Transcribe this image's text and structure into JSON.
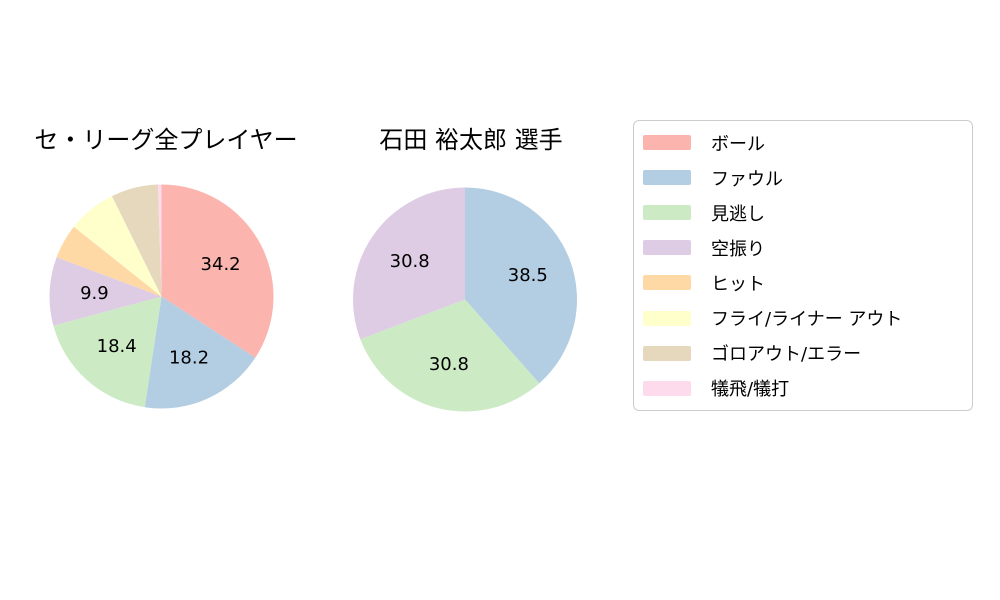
{
  "figure": {
    "background": "#ffffff",
    "text_color": "#000000"
  },
  "chart_data": [
    {
      "type": "pie",
      "title": "セ・リーグ全プレイヤー",
      "value_unit": "percent",
      "start_angle": "top",
      "direction": "clockwise",
      "label_position": "inside",
      "slices": [
        {
          "name": "ボール",
          "value": 34.2,
          "label": "34.2",
          "color": "#FBB4AE"
        },
        {
          "name": "ファウル",
          "value": 18.2,
          "label": "18.2",
          "color": "#B3CDE3"
        },
        {
          "name": "見逃し",
          "value": 18.4,
          "label": "18.4",
          "color": "#CCEBC5"
        },
        {
          "name": "空振り",
          "value": 9.9,
          "label": "9.9",
          "color": "#DECBE4"
        },
        {
          "name": "ヒット",
          "value": 5.0,
          "label": null,
          "color": "#FED9A6"
        },
        {
          "name": "フライ/ライナー アウト",
          "value": 7.0,
          "label": null,
          "color": "#FFFFCC"
        },
        {
          "name": "ゴロアウト/エラー",
          "value": 6.8,
          "label": null,
          "color": "#E5D8BD"
        },
        {
          "name": "犠飛/犠打",
          "value": 0.5,
          "label": null,
          "color": "#FDDAEC"
        }
      ]
    },
    {
      "type": "pie",
      "title": "石田 裕太郎 選手",
      "value_unit": "percent",
      "start_angle": "top",
      "direction": "clockwise",
      "label_position": "inside",
      "slices": [
        {
          "name": "ファウル",
          "value": 38.5,
          "label": "38.5",
          "color": "#B3CDE3"
        },
        {
          "name": "見逃し",
          "value": 30.8,
          "label": "30.8",
          "color": "#CCEBC5"
        },
        {
          "name": "空振り",
          "value": 30.8,
          "label": "30.8",
          "color": "#DECBE4"
        }
      ]
    }
  ],
  "legend": {
    "border_color": "#cccccc",
    "background": "#ffffff",
    "position": "right",
    "items": [
      {
        "label": "ボール",
        "color": "#FBB4AE"
      },
      {
        "label": "ファウル",
        "color": "#B3CDE3"
      },
      {
        "label": "見逃し",
        "color": "#CCEBC5"
      },
      {
        "label": "空振り",
        "color": "#DECBE4"
      },
      {
        "label": "ヒット",
        "color": "#FED9A6"
      },
      {
        "label": "フライ/ライナー アウト",
        "color": "#FFFFCC"
      },
      {
        "label": "ゴロアウト/エラー",
        "color": "#E5D8BD"
      },
      {
        "label": "犠飛/犠打",
        "color": "#FDDAEC"
      }
    ]
  }
}
